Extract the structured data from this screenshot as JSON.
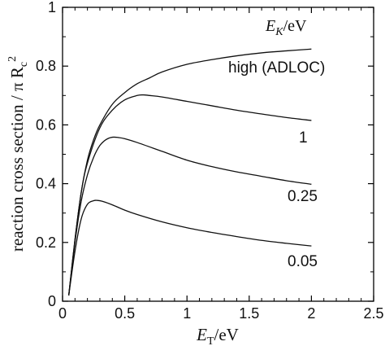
{
  "chart_data": {
    "type": "line",
    "xlabel": "E_T/eV",
    "xlabel_main": "E",
    "xlabel_sub": "T",
    "xlabel_unit": "/eV",
    "ylabel": "reaction cross section / π R_c²",
    "ylabel_main": "reaction cross section / π R",
    "ylabel_sub": "c",
    "ylabel_sup": "2",
    "xlim": [
      0,
      2.5
    ],
    "ylim": [
      0,
      1
    ],
    "xticks": [
      0,
      0.5,
      1,
      1.5,
      2,
      2.5
    ],
    "xtick_labels": [
      "0",
      "0.5",
      "1",
      "1.5",
      "2",
      "2.5"
    ],
    "yticks": [
      0,
      0.2,
      0.4,
      0.6,
      0.8,
      1
    ],
    "ytick_labels": [
      "0",
      "0.2",
      "0.4",
      "0.6",
      "0.8",
      "1"
    ],
    "legend_title": "E_K/eV",
    "legend_title_main": "E",
    "legend_title_sub": "K",
    "legend_title_unit": "/eV",
    "grid": false,
    "series": [
      {
        "name": "high (ADLOC)",
        "x": [
          0.05,
          0.1,
          0.15,
          0.2,
          0.25,
          0.3,
          0.4,
          0.5,
          0.6,
          0.7,
          0.8,
          1.0,
          1.2,
          1.4,
          1.6,
          1.8,
          2.0
        ],
        "y": [
          0.02,
          0.21,
          0.37,
          0.48,
          0.55,
          0.6,
          0.67,
          0.71,
          0.74,
          0.76,
          0.78,
          0.806,
          0.822,
          0.835,
          0.845,
          0.852,
          0.858
        ]
      },
      {
        "name": "1",
        "x": [
          0.05,
          0.1,
          0.15,
          0.2,
          0.3,
          0.4,
          0.5,
          0.6,
          0.65,
          0.7,
          0.8,
          1.0,
          1.2,
          1.4,
          1.6,
          1.8,
          2.0
        ],
        "y": [
          0.02,
          0.21,
          0.37,
          0.47,
          0.59,
          0.65,
          0.685,
          0.7,
          0.702,
          0.7,
          0.695,
          0.68,
          0.665,
          0.65,
          0.637,
          0.625,
          0.615
        ]
      },
      {
        "name": "0.25",
        "x": [
          0.05,
          0.1,
          0.15,
          0.2,
          0.25,
          0.3,
          0.35,
          0.4,
          0.45,
          0.5,
          0.6,
          0.8,
          1.0,
          1.2,
          1.4,
          1.6,
          1.8,
          2.0
        ],
        "y": [
          0.02,
          0.2,
          0.34,
          0.43,
          0.49,
          0.53,
          0.55,
          0.558,
          0.557,
          0.553,
          0.54,
          0.51,
          0.48,
          0.458,
          0.44,
          0.425,
          0.41,
          0.398
        ]
      },
      {
        "name": "0.05",
        "x": [
          0.05,
          0.1,
          0.15,
          0.2,
          0.25,
          0.28,
          0.32,
          0.4,
          0.5,
          0.6,
          0.8,
          1.0,
          1.2,
          1.4,
          1.6,
          1.8,
          2.0
        ],
        "y": [
          0.02,
          0.17,
          0.28,
          0.33,
          0.342,
          0.343,
          0.34,
          0.328,
          0.31,
          0.295,
          0.27,
          0.25,
          0.234,
          0.22,
          0.207,
          0.197,
          0.188
        ]
      }
    ]
  }
}
